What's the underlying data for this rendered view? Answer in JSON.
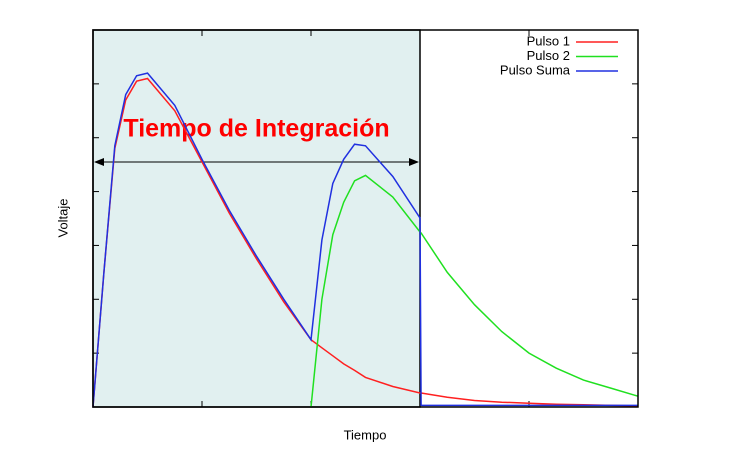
{
  "chart_data": {
    "type": "line",
    "xlabel": "Tiempo",
    "ylabel": "Voltaje",
    "annotation": {
      "label": "Tiempo de Integración",
      "x_range": [
        0,
        3
      ],
      "color": "#ff0000",
      "fill": "#e1f0f0"
    },
    "legend": "top-right",
    "xlim": [
      0,
      5
    ],
    "ylim": [
      0,
      7
    ],
    "xticks": [
      1,
      2,
      3,
      4
    ],
    "yticks": [
      1,
      2,
      3,
      4,
      5,
      6
    ],
    "x": [
      0,
      0.1,
      0.2,
      0.3,
      0.4,
      0.5,
      0.75,
      1,
      1.25,
      1.5,
      1.75,
      2,
      2.1,
      2.2,
      2.3,
      2.4,
      2.5,
      2.75,
      3,
      3.01,
      3.25,
      3.5,
      3.75,
      4,
      4.25,
      4.5,
      4.75,
      5
    ],
    "series": [
      {
        "name": "Pulso 1",
        "color": "#ff2020",
        "values": [
          0,
          2.5,
          4.8,
          5.7,
          6.05,
          6.1,
          5.5,
          4.55,
          3.6,
          2.75,
          1.95,
          1.25,
          1.1,
          0.95,
          0.8,
          0.68,
          0.55,
          0.38,
          0.26,
          0.26,
          0.18,
          0.12,
          0.09,
          0.07,
          0.05,
          0.04,
          0.03,
          0.02
        ]
      },
      {
        "name": "Pulso 2",
        "color": "#20e020",
        "values": [
          null,
          null,
          null,
          null,
          null,
          null,
          null,
          null,
          null,
          null,
          null,
          0,
          2.0,
          3.2,
          3.8,
          4.2,
          4.3,
          3.9,
          3.25,
          3.23,
          2.5,
          1.9,
          1.4,
          1.0,
          0.72,
          0.5,
          0.35,
          0.2
        ]
      },
      {
        "name": "Pulso Suma",
        "color": "#2030e0",
        "values": [
          0,
          2.5,
          4.85,
          5.8,
          6.15,
          6.2,
          5.6,
          4.6,
          3.65,
          2.8,
          2.0,
          1.25,
          3.1,
          4.15,
          4.6,
          4.88,
          4.85,
          4.28,
          3.51,
          0.03,
          0.03,
          0.03,
          0.03,
          0.03,
          0.03,
          0.03,
          0.03,
          0.03
        ]
      }
    ]
  }
}
